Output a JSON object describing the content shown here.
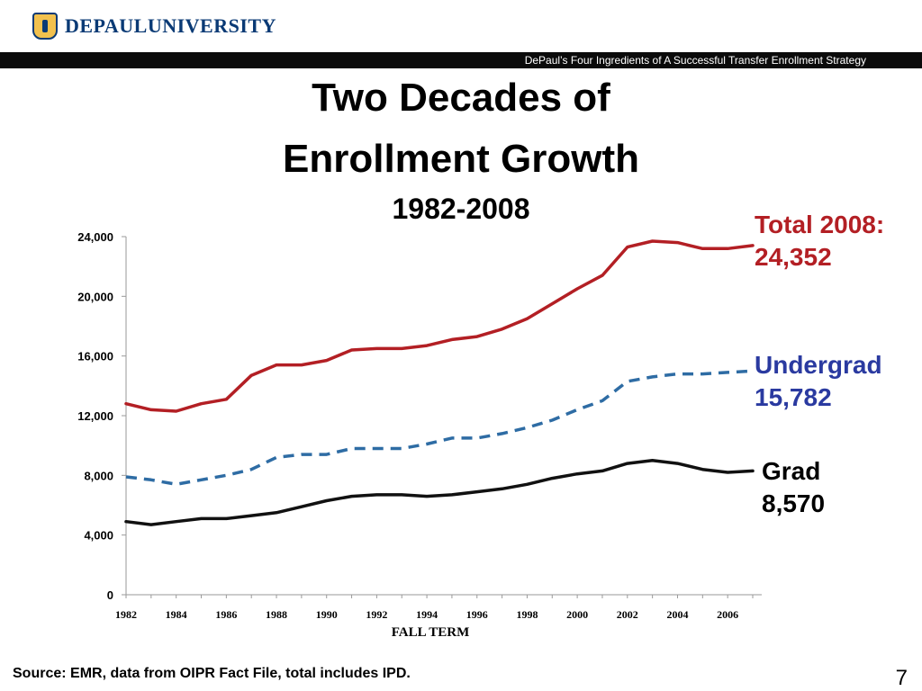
{
  "header": {
    "logo_text": "DEPAULUNIVERSITY",
    "subtitle": "DePaul’s Four Ingredients of  A Successful Transfer Enrollment Strategy"
  },
  "title": {
    "line1": "Two Decades of",
    "line2": "Enrollment Growth",
    "line3": "1982-2008"
  },
  "callouts": {
    "total": [
      "Total 2008:",
      "24,352"
    ],
    "undergrad": [
      "Undergrad",
      "15,782"
    ],
    "grad": [
      "Grad",
      "8,570"
    ]
  },
  "footer": {
    "source": "Source: EMR, data from OIPR Fact File, total includes IPD.",
    "page_number": "7"
  },
  "chart_data": {
    "type": "line",
    "xlabel": "FALL TERM",
    "ylabel": "",
    "xlim": [
      1982,
      2007
    ],
    "ylim": [
      0,
      24000
    ],
    "y_ticks": [
      0,
      4000,
      8000,
      12000,
      16000,
      20000,
      24000
    ],
    "y_tick_labels": [
      "0",
      "4,000",
      "8,000",
      "12,000",
      "16,000",
      "20,000",
      "24,000"
    ],
    "x_ticks": [
      1982,
      1984,
      1986,
      1988,
      1990,
      1992,
      1994,
      1996,
      1998,
      2000,
      2002,
      2004,
      2006
    ],
    "x_tick_labels": [
      "1982",
      "1984",
      "1986",
      "1988",
      "1990",
      "1992",
      "1994",
      "1996",
      "1998",
      "2000",
      "2002",
      "2004",
      "2006"
    ],
    "grid": false,
    "x": [
      1982,
      1983,
      1984,
      1985,
      1986,
      1987,
      1988,
      1989,
      1990,
      1991,
      1992,
      1993,
      1994,
      1995,
      1996,
      1997,
      1998,
      1999,
      2000,
      2001,
      2002,
      2003,
      2004,
      2005,
      2006,
      2007
    ],
    "series": [
      {
        "color": "#b31f24",
        "dash": false,
        "values": [
          12800,
          12400,
          12300,
          12800,
          13100,
          14700,
          15400,
          15400,
          15700,
          16400,
          16500,
          16500,
          16700,
          17100,
          17300,
          17800,
          18500,
          19500,
          20500,
          21400,
          23300,
          23700,
          23600,
          23200,
          23200,
          23400
        ]
      },
      {
        "color": "#2e6ca4",
        "dash": true,
        "values": [
          7900,
          7700,
          7400,
          7700,
          8000,
          8400,
          9200,
          9400,
          9400,
          9800,
          9800,
          9800,
          10100,
          10500,
          10500,
          10800,
          11200,
          11700,
          12400,
          13000,
          14300,
          14600,
          14800,
          14800,
          14900,
          15000
        ]
      },
      {
        "color": "#111111",
        "dash": false,
        "values": [
          4900,
          4700,
          4900,
          5100,
          5100,
          5300,
          5500,
          5900,
          6300,
          6600,
          6700,
          6700,
          6600,
          6700,
          6900,
          7100,
          7400,
          7800,
          8100,
          8300,
          8800,
          9000,
          8800,
          8400,
          8200,
          8300
        ]
      }
    ]
  }
}
